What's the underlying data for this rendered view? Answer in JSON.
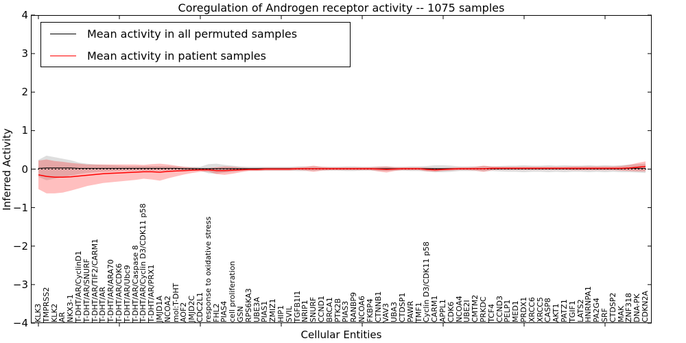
{
  "title": "Coregulation of Androgen receptor activity -- 1075 samples",
  "axes": {
    "xlabel": "Cellular Entities",
    "ylabel": "Inferred Activity",
    "yticks": [
      {
        "value": 4,
        "label": "4"
      },
      {
        "value": 3,
        "label": "3"
      },
      {
        "value": 2,
        "label": "2"
      },
      {
        "value": 1,
        "label": "1"
      },
      {
        "value": 0,
        "label": "0"
      },
      {
        "value": -1,
        "label": "−1"
      },
      {
        "value": -2,
        "label": "−2"
      },
      {
        "value": -3,
        "label": "−3"
      },
      {
        "value": -4,
        "label": "−4"
      }
    ]
  },
  "legend": {
    "items": [
      {
        "label": "Mean activity in all permuted samples",
        "color": "#000000"
      },
      {
        "label": "Mean activity in patient samples",
        "color": "#ff0000"
      }
    ]
  },
  "chart_data": {
    "type": "line",
    "title": "Coregulation of Androgen receptor activity -- 1075 samples",
    "xlabel": "Cellular Entities",
    "ylabel": "Inferred Activity",
    "ylim": [
      -4,
      4
    ],
    "grid": false,
    "legend_position": "upper left",
    "zero_line_dashed": true,
    "band_colors": {
      "permuted": "rgba(0,0,0,0.13)",
      "patient": "rgba(255,0,0,0.25)"
    },
    "categories": [
      "KLK3",
      "TMPRSS2",
      "KLK2",
      "AR",
      "NKX3-1",
      "T-DHT/AR/CyclinD1",
      "T-DHT/AR/SNURF",
      "T-DHT/AR/TIF2/CARM1",
      "T-DHT/AR",
      "T-DHT/AR/ARA70",
      "T-DHT/AR/CDK6",
      "T-DHT/AR/Ubc9",
      "T-DHT/AR/Caspase 8",
      "T-DHT/AR/Cyclin D3/CDK11 p58",
      "T-DHT/AR/PRX1",
      "JMJD1A",
      "NCOA2",
      "mol:T-DHT",
      "AOF2",
      "JMJD2C",
      "CDC2L1",
      "response to oxidative stress",
      "FHL2",
      "PIAS4",
      "cell proliferation",
      "GSN",
      "RPS6KA3",
      "UBE3A",
      "PIAS1",
      "ZMIZ1",
      "HIP1",
      "SVIL",
      "TGFB1I1",
      "NRIP1",
      "SNURF",
      "CCND1",
      "BRCA1",
      "PTK2B",
      "PIAS3",
      "RANBP9",
      "NCOA6",
      "FKBP4",
      "CTNNB1",
      "VAV3",
      "UBA3",
      "CTDSP1",
      "PAWR",
      "TMF1",
      "Cyclin D3/CDK11 p58",
      "CARM1",
      "APPL1",
      "CDK6",
      "NCOA4",
      "UBE2I",
      "CMTM2",
      "PRKDC",
      "TCF4",
      "CCND3",
      "PELP1",
      "MED1",
      "PRDX1",
      "XRCC6",
      "XRCC5",
      "CASP8",
      "AKT1",
      "PATZ1",
      "TGIF1",
      "LATS2",
      "HNRNPA1",
      "PA2G4",
      "SRF",
      "CTDSP2",
      "MAK",
      "ZNF318",
      "DNA-PK",
      "CDKN2A"
    ],
    "series": [
      {
        "name": "Mean activity in all permuted samples",
        "color": "#000000",
        "values": [
          0.02,
          0.03,
          0.03,
          0.03,
          0.03,
          0.02,
          0.02,
          0.02,
          0.02,
          0.02,
          0.02,
          0.02,
          0.02,
          0.02,
          0.02,
          0.02,
          0.02,
          0.02,
          0.01,
          0.01,
          0.01,
          0.01,
          0.01,
          0.01,
          0.01,
          0.01,
          0.01,
          0.01,
          0.01,
          0.01,
          0.01,
          0.01,
          0.01,
          0.01,
          0.01,
          0.01,
          0.01,
          0.01,
          0.01,
          0.01,
          0.01,
          0.01,
          0.01,
          0.01,
          0.01,
          0.01,
          0.01,
          0.01,
          0.01,
          0.01,
          0.01,
          0.01,
          0.01,
          0.01,
          0.01,
          0.01,
          0.01,
          0.01,
          0.01,
          0.01,
          0.01,
          0.01,
          0.01,
          0.01,
          0.01,
          0.01,
          0.01,
          0.01,
          0.01,
          0.01,
          0.01,
          0.01,
          0.01,
          0.02,
          0.02,
          0.02
        ],
        "band": [
          0.22,
          0.32,
          0.28,
          0.24,
          0.2,
          0.15,
          0.12,
          0.1,
          0.09,
          0.08,
          0.07,
          0.06,
          0.06,
          0.06,
          0.06,
          0.06,
          0.06,
          0.05,
          0.05,
          0.05,
          0.05,
          0.12,
          0.13,
          0.1,
          0.08,
          0.06,
          0.05,
          0.05,
          0.05,
          0.05,
          0.05,
          0.05,
          0.06,
          0.06,
          0.06,
          0.05,
          0.05,
          0.05,
          0.06,
          0.06,
          0.05,
          0.05,
          0.06,
          0.06,
          0.05,
          0.05,
          0.06,
          0.06,
          0.07,
          0.09,
          0.09,
          0.08,
          0.06,
          0.06,
          0.06,
          0.07,
          0.06,
          0.07,
          0.08,
          0.08,
          0.09,
          0.08,
          0.08,
          0.09,
          0.08,
          0.09,
          0.08,
          0.08,
          0.09,
          0.08,
          0.09,
          0.08,
          0.09,
          0.1,
          0.11,
          0.12
        ]
      },
      {
        "name": "Mean activity in patient samples",
        "color": "#ff0000",
        "values": [
          -0.15,
          -0.19,
          -0.21,
          -0.21,
          -0.2,
          -0.18,
          -0.16,
          -0.14,
          -0.12,
          -0.11,
          -0.1,
          -0.09,
          -0.08,
          -0.07,
          -0.07,
          -0.08,
          -0.06,
          -0.05,
          -0.04,
          -0.03,
          -0.02,
          -0.02,
          -0.04,
          -0.04,
          -0.03,
          -0.02,
          -0.01,
          -0.01,
          0.0,
          0.0,
          0.0,
          0.0,
          0.01,
          0.01,
          0.01,
          0.01,
          0.01,
          0.01,
          0.01,
          0.01,
          0.01,
          0.01,
          0.0,
          -0.01,
          0.0,
          0.01,
          0.01,
          0.01,
          -0.01,
          -0.02,
          -0.01,
          0.0,
          0.01,
          0.01,
          0.01,
          0.01,
          0.02,
          0.02,
          0.02,
          0.02,
          0.02,
          0.02,
          0.02,
          0.02,
          0.02,
          0.02,
          0.02,
          0.02,
          0.02,
          0.02,
          0.02,
          0.02,
          0.02,
          0.03,
          0.05,
          0.07
        ],
        "band": [
          0.37,
          0.44,
          0.42,
          0.4,
          0.36,
          0.32,
          0.28,
          0.26,
          0.24,
          0.23,
          0.22,
          0.21,
          0.2,
          0.18,
          0.2,
          0.22,
          0.18,
          0.14,
          0.1,
          0.07,
          0.05,
          0.05,
          0.09,
          0.11,
          0.09,
          0.06,
          0.04,
          0.04,
          0.04,
          0.04,
          0.04,
          0.04,
          0.04,
          0.05,
          0.08,
          0.05,
          0.04,
          0.04,
          0.04,
          0.04,
          0.04,
          0.04,
          0.06,
          0.08,
          0.05,
          0.04,
          0.04,
          0.04,
          0.05,
          0.05,
          0.04,
          0.04,
          0.04,
          0.04,
          0.05,
          0.08,
          0.05,
          0.04,
          0.04,
          0.04,
          0.04,
          0.04,
          0.04,
          0.04,
          0.04,
          0.04,
          0.05,
          0.05,
          0.05,
          0.05,
          0.05,
          0.05,
          0.06,
          0.08,
          0.11,
          0.13
        ]
      }
    ]
  }
}
